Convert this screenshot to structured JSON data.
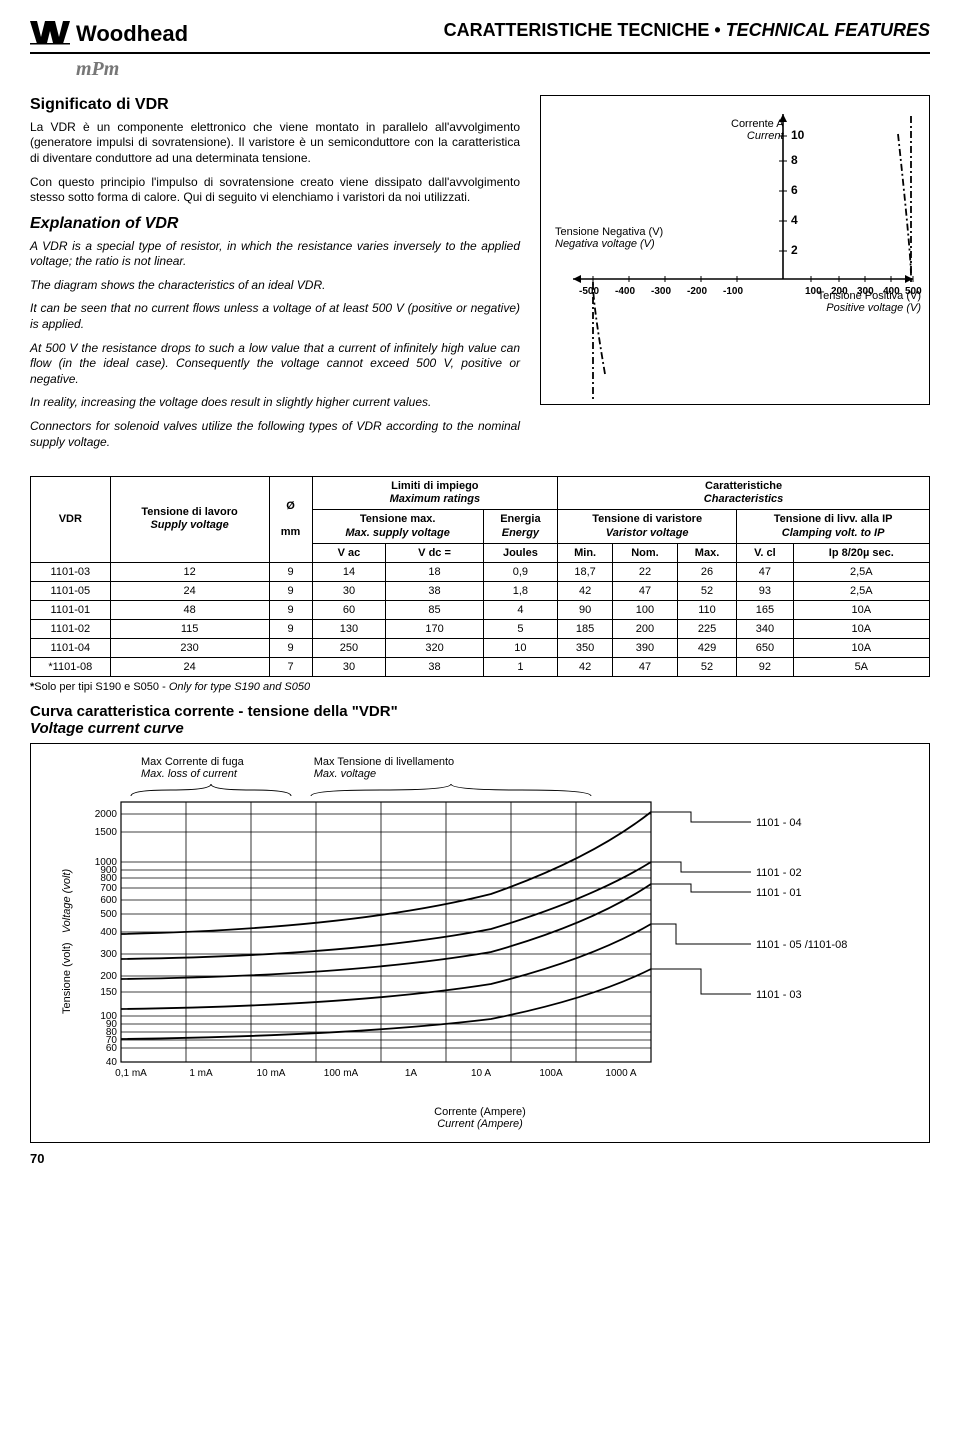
{
  "header": {
    "brand": "Woodhead",
    "subbrand": "mPm",
    "title_plain": "CARATTERISTICHE TECNICHE • ",
    "title_italic": "TECHNICAL FEATURES"
  },
  "section1": {
    "title": "Significato di VDR",
    "p1": "La VDR è un componente elettronico che viene montato in parallelo all'avvolgimento (generatore impulsi di sovratensione). Il varistore è un semiconduttore con la caratteristica di diventare conduttore ad una determinata tensione.",
    "p2": "Con questo principio l'impulso di sovratensione creato viene dissipato dall'avvolgimento stesso sotto forma di calore. Qui di seguito vi elenchiamo i varistori da noi utilizzati."
  },
  "section2": {
    "title": "Explanation of VDR",
    "p1": "A VDR is a special type of resistor, in which the resistance varies inversely to the applied voltage; the ratio is not linear.",
    "p2": "The diagram shows the characteristics of an ideal VDR.",
    "p3": "It can be seen that no current flows unless a voltage of at least 500 V (positive or negative) is applied.",
    "p4": "At 500 V the resistance drops to such a low value that a current of infinitely high value can flow (in the ideal case). Consequently the voltage cannot exceed 500 V, positive or negative.",
    "p5": "In reality, increasing the voltage does result in slightly higher current values.",
    "p6": "Connectors for solenoid valves utilize the following types of VDR according to the nominal supply voltage."
  },
  "chart1": {
    "neg_label_it": "Tensione Negativa (V)",
    "neg_label_en": "Negativa voltage (V)",
    "cur_label_it": "Corrente A",
    "cur_label_en": "Current",
    "pos_label_it": "Tensione Positiva (V)",
    "pos_label_en": "Positive voltage (V)",
    "y_ticks": [
      "10",
      "8",
      "6",
      "4",
      "2"
    ],
    "x_left": [
      "-500",
      "-400",
      "-300",
      "-200",
      "-100"
    ],
    "x_right": [
      "100",
      "200",
      "300",
      "400",
      "500"
    ],
    "line_color": "#000000",
    "dash_pattern": "5,3,1,3"
  },
  "table": {
    "col_vdr": "VDR",
    "col_voltage_it": "Tensione di lavoro",
    "col_voltage_en": "Supply voltage",
    "col_diam": "Ø",
    "col_diam_unit": "mm",
    "col_limits_it": "Limiti di impiego",
    "col_limits_en": "Maximum ratings",
    "col_char_it": "Caratteristiche",
    "col_char_en": "Characteristics",
    "col_maxv_it": "Tensione max.",
    "col_maxv_en": "Max. supply voltage",
    "col_energy_it": "Energia",
    "col_energy_en": "Energy",
    "col_varv_it": "Tensione di varistore",
    "col_varv_en": "Varistor voltage",
    "col_clamp_it": "Tensione di livv. alla IP",
    "col_clamp_en": "Clamping volt. to IP",
    "sub_vac": "V ac",
    "sub_vdc": "V dc =",
    "sub_joules": "Joules",
    "sub_min": "Min.",
    "sub_nom": "Nom.",
    "sub_max": "Max.",
    "sub_vcl": "V. cl",
    "sub_ip": "Ip 8/20µ sec.",
    "rows": [
      [
        "1101-03",
        "12",
        "9",
        "14",
        "18",
        "0,9",
        "18,7",
        "22",
        "26",
        "47",
        "2,5A"
      ],
      [
        "1101-05",
        "24",
        "9",
        "30",
        "38",
        "1,8",
        "42",
        "47",
        "52",
        "93",
        "2,5A"
      ],
      [
        "1101-01",
        "48",
        "9",
        "60",
        "85",
        "4",
        "90",
        "100",
        "110",
        "165",
        "10A"
      ],
      [
        "1101-02",
        "115",
        "9",
        "130",
        "170",
        "5",
        "185",
        "200",
        "225",
        "340",
        "10A"
      ],
      [
        "1101-04",
        "230",
        "9",
        "250",
        "320",
        "10",
        "350",
        "390",
        "429",
        "650",
        "10A"
      ],
      [
        "*1101-08",
        "24",
        "7",
        "30",
        "38",
        "1",
        "42",
        "47",
        "52",
        "92",
        "5A"
      ]
    ]
  },
  "footnote": {
    "star": "*",
    "text_it": "Solo per tipi S190 e S050  - ",
    "text_en": "Only for type S190 and S050"
  },
  "curve": {
    "title_it": "Curva caratteristica corrente - tensione della \"VDR\"",
    "title_en": "Voltage current curve",
    "top1_it": "Max Corrente di fuga",
    "top1_en": "Max. loss of current",
    "top2_it": "Max Tensione di livellamento",
    "top2_en": "Max. voltage",
    "ylab_it": "Tensione (volt)",
    "ylab_en": "Voltage (volt)",
    "xlab_it": "Corrente (Ampere)",
    "xlab_en": "Current (Ampere)",
    "y_ticks": [
      "2000",
      "1500",
      "1000",
      "900",
      "800",
      "700",
      "600",
      "500",
      "400",
      "300",
      "200",
      "150",
      "100",
      "90",
      "80",
      "70",
      "60",
      "40"
    ],
    "x_ticks": [
      "0,1 mA",
      "1 mA",
      "10 mA",
      "100 mA",
      "1A",
      "10 A",
      "100A",
      "1000 A"
    ],
    "series_labels": [
      "1101 - 04",
      "1101 - 02",
      "1101 - 01",
      "1101 - 05 /1101-08",
      "1101 - 03"
    ]
  },
  "page_number": "70"
}
